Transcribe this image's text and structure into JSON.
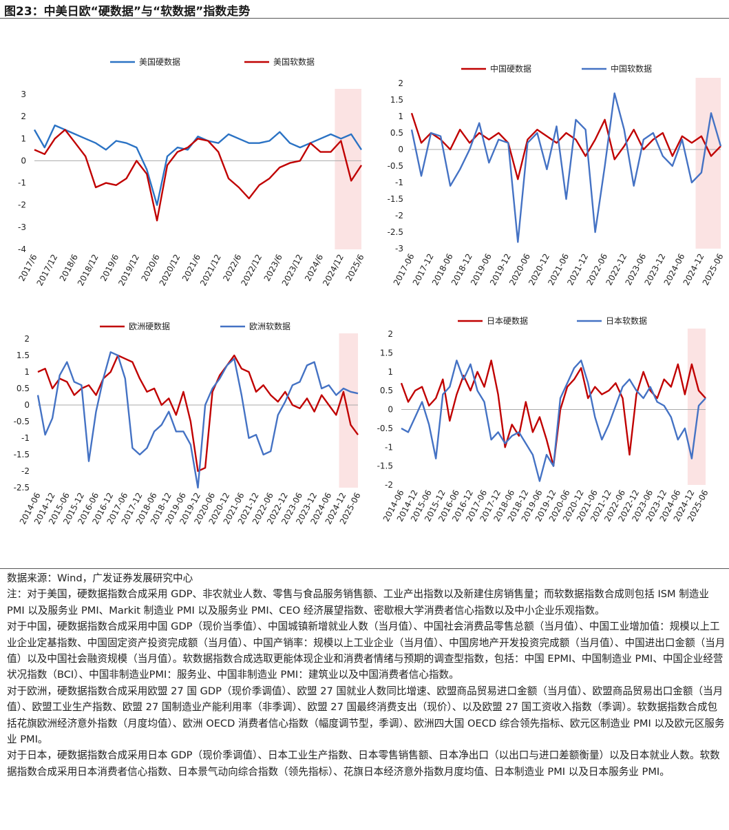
{
  "header": {
    "title": "图23：中美日欧“硬数据”与“软数据”指数走势"
  },
  "chart_data": [
    {
      "type": "line",
      "shade_from": "2024/12",
      "categories": [
        "2017/6",
        null,
        "2017/12",
        null,
        "2018/6",
        null,
        "2018/12",
        null,
        "2019/6",
        null,
        "2019/12",
        null,
        "2020/6",
        null,
        "2020/12",
        null,
        "2021/6",
        null,
        "2021/12",
        null,
        "2022/6",
        null,
        "2022/12",
        null,
        "2023/6",
        null,
        "2023/12",
        null,
        "2024/6",
        null,
        "2024/12",
        null,
        "2025/6"
      ],
      "ylim": [
        -4,
        3
      ],
      "yticks": [
        -4,
        -3,
        -2,
        -1,
        0,
        1,
        2,
        3
      ],
      "series": [
        {
          "name": "美国硬数据",
          "color": "#2a72c4",
          "values": [
            1.4,
            0.6,
            1.6,
            1.4,
            1.2,
            1.0,
            0.8,
            0.5,
            0.9,
            0.8,
            0.6,
            -0.4,
            -2.0,
            0.2,
            0.6,
            0.5,
            1.1,
            0.9,
            0.8,
            1.2,
            1.0,
            0.8,
            0.8,
            0.9,
            1.3,
            0.8,
            0.6,
            0.8,
            1.0,
            1.2,
            1.0,
            1.2,
            0.5
          ]
        },
        {
          "name": "美国软数据",
          "color": "#c00000",
          "values": [
            0.5,
            0.3,
            1.0,
            1.4,
            0.8,
            0.2,
            -1.2,
            -1.0,
            -1.1,
            -0.8,
            0.0,
            -0.6,
            -2.7,
            -0.2,
            0.4,
            0.6,
            1.0,
            0.9,
            0.4,
            -0.8,
            -1.2,
            -1.7,
            -1.1,
            -0.8,
            -0.3,
            -0.1,
            0.0,
            0.8,
            0.4,
            0.4,
            0.9,
            -0.9,
            -0.2
          ]
        }
      ]
    },
    {
      "type": "line",
      "shade_from": "2024-12",
      "categories": [
        "2017-06",
        null,
        "2017-12",
        null,
        "2018-06",
        null,
        "2018-12",
        null,
        "2019-06",
        null,
        "2019-12",
        null,
        "2020-06",
        null,
        "2020-12",
        null,
        "2021-06",
        null,
        "2021-12",
        null,
        "2022-06",
        null,
        "2022-12",
        null,
        "2023-06",
        null,
        "2023-12",
        null,
        "2024-06",
        null,
        "2024-12",
        null,
        "2025-06"
      ],
      "ylim": [
        -3,
        2
      ],
      "yticks": [
        -3,
        -2.5,
        -2,
        -1.5,
        -1,
        -0.5,
        0,
        0.5,
        1,
        1.5,
        2
      ],
      "series": [
        {
          "name": "中国硬数据",
          "color": "#c00000",
          "values": [
            1.1,
            0.2,
            0.5,
            0.3,
            0.0,
            0.6,
            0.2,
            0.5,
            0.3,
            0.5,
            0.2,
            -0.9,
            0.3,
            0.6,
            0.4,
            0.2,
            0.5,
            0.3,
            -0.2,
            0.3,
            0.9,
            -0.3,
            0.1,
            0.6,
            0.0,
            0.3,
            0.5,
            -0.2,
            0.4,
            0.2,
            0.4,
            -0.2,
            0.1
          ]
        },
        {
          "name": "中国软数据",
          "color": "#4472c4",
          "values": [
            0.6,
            -0.8,
            0.5,
            0.4,
            -1.1,
            -0.6,
            0.0,
            0.8,
            -0.4,
            0.3,
            0.2,
            -2.8,
            0.2,
            0.5,
            -0.6,
            0.7,
            -1.5,
            0.9,
            0.6,
            -2.5,
            -0.5,
            1.7,
            0.6,
            -1.1,
            0.3,
            0.5,
            -0.2,
            -0.5,
            0.3,
            -1.0,
            -0.7,
            1.1,
            0.1
          ]
        }
      ]
    },
    {
      "type": "line",
      "shade_from": "2024-12",
      "categories": [
        "2014-06",
        null,
        "2014-12",
        null,
        "2015-06",
        null,
        "2015-12",
        null,
        "2016-06",
        null,
        "2016-12",
        null,
        "2017-06",
        null,
        "2017-12",
        null,
        "2018-06",
        null,
        "2018-12",
        null,
        "2019-06",
        null,
        "2019-12",
        null,
        "2020-06",
        null,
        "2020-12",
        null,
        "2021-06",
        null,
        "2021-12",
        null,
        "2022-06",
        null,
        "2022-12",
        null,
        "2023-06",
        null,
        "2023-12",
        null,
        "2024-06",
        null,
        "2024-12",
        null,
        "2025-06"
      ],
      "ylim": [
        -2.5,
        2
      ],
      "yticks": [
        -2.5,
        -2,
        -1.5,
        -1,
        -0.5,
        0,
        0.5,
        1,
        1.5,
        2
      ],
      "series": [
        {
          "name": "欧洲硬数据",
          "color": "#c00000",
          "values": [
            1.0,
            1.1,
            0.5,
            0.8,
            0.7,
            0.3,
            0.5,
            0.6,
            0.3,
            0.8,
            1.0,
            1.5,
            1.4,
            1.3,
            0.8,
            0.4,
            0.5,
            0.0,
            0.2,
            -0.3,
            0.4,
            -0.5,
            -2.0,
            -1.9,
            0.4,
            0.9,
            1.2,
            1.5,
            1.1,
            1.0,
            0.4,
            0.6,
            0.3,
            0.1,
            0.4,
            0.0,
            -0.1,
            0.2,
            -0.2,
            0.3,
            0.0,
            -0.3,
            0.4,
            -0.6,
            -0.9
          ]
        },
        {
          "name": "欧洲软数据",
          "color": "#4472c4",
          "values": [
            0.3,
            -0.9,
            -0.4,
            0.9,
            1.3,
            0.7,
            0.6,
            -1.7,
            -0.2,
            0.8,
            1.6,
            1.5,
            0.8,
            -1.3,
            -1.5,
            -1.3,
            -0.8,
            -0.6,
            -0.2,
            -0.8,
            -0.8,
            -1.2,
            -2.5,
            0.0,
            0.5,
            0.8,
            1.2,
            1.4,
            0.3,
            -1.0,
            -0.9,
            -1.5,
            -1.4,
            -0.3,
            0.1,
            0.6,
            0.7,
            1.2,
            1.3,
            0.5,
            0.6,
            0.3,
            0.5,
            0.4,
            0.35
          ]
        }
      ]
    },
    {
      "type": "line",
      "shade_from": "2024-12",
      "categories": [
        "2014-06",
        null,
        "2014-12",
        null,
        "2015-06",
        null,
        "2015-12",
        null,
        "2016-06",
        null,
        "2016-12",
        null,
        "2017-06",
        null,
        "2017-12",
        null,
        "2018-06",
        null,
        "2018-12",
        null,
        "2019-06",
        null,
        "2019-12",
        null,
        "2020-06",
        null,
        "2020-12",
        null,
        "2021-06",
        null,
        "2021-12",
        null,
        "2022-06",
        null,
        "2022-12",
        null,
        "2023-06",
        null,
        "2023-12",
        null,
        "2024-06",
        null,
        "2024-12",
        null,
        "2025-06"
      ],
      "ylim": [
        -2,
        2
      ],
      "yticks": [
        -2,
        -1.5,
        -1,
        -0.5,
        0,
        0.5,
        1,
        1.5,
        2
      ],
      "series": [
        {
          "name": "日本硬数据",
          "color": "#c00000",
          "values": [
            0.7,
            0.2,
            0.5,
            0.6,
            0.1,
            0.3,
            0.8,
            -0.3,
            0.4,
            0.9,
            0.5,
            1.0,
            0.6,
            1.3,
            0.4,
            -1.0,
            -0.4,
            -0.7,
            0.2,
            -0.6,
            -0.2,
            -0.8,
            -1.5,
            0.0,
            0.6,
            0.8,
            1.1,
            0.3,
            0.6,
            0.4,
            0.5,
            0.7,
            0.3,
            -1.2,
            0.4,
            1.0,
            0.5,
            0.3,
            0.8,
            0.6,
            1.2,
            0.4,
            1.2,
            0.5,
            0.3
          ]
        },
        {
          "name": "日本软数据",
          "color": "#4472c4",
          "values": [
            -0.5,
            -0.6,
            -0.2,
            0.2,
            -0.4,
            -1.3,
            0.4,
            0.6,
            1.3,
            0.8,
            1.2,
            0.5,
            0.2,
            -0.8,
            -0.6,
            -0.9,
            -0.7,
            -0.6,
            -0.9,
            -1.2,
            -1.9,
            -1.2,
            -1.5,
            0.3,
            0.7,
            1.1,
            1.3,
            0.7,
            -0.2,
            -0.8,
            -0.4,
            0.1,
            0.6,
            0.8,
            0.5,
            0.3,
            0.6,
            0.2,
            0.1,
            -0.2,
            -0.8,
            -0.5,
            -1.3,
            0.1,
            0.3
          ]
        }
      ]
    }
  ],
  "notes": {
    "source": "数据来源：Wind，广发证券发展研究中心",
    "paragraphs": [
      "注：对于美国，硬数据指数合成采用 GDP、非农就业人数、零售与食品服务销售额、工业产出指数以及新建住房销售量；而软数据指数合成则包括 ISM 制造业 PMI 以及服务业 PMI、Markit 制造业 PMI 以及服务业 PMI、CEO 经济展望指数、密歇根大学消费者信心指数以及中小企业乐观指数。",
      "对于中国，硬数据指数合成采用中国 GDP（现价当季值）、中国城镇新增就业人数（当月值）、中国社会消费品零售总额（当月值）、中国工业增加值：规模以上工业企业定基指数、中国固定资产投资完成额（当月值）、中国产销率：规模以上工业企业（当月值）、中国房地产开发投资完成额（当月值）、中国进出口金额（当月值）以及中国社会融资规模（当月值）。软数据指数合成选取更能体现企业和消费者情绪与预期的调查型指数，包括：中国 EPMI、中国制造业 PMI、中国企业经营状况指数（BCI）、中国非制造业PMI：服务业、中国非制造业 PMI：建筑业以及中国消费者信心指数。",
      "对于欧洲，硬数据指数合成采用欧盟 27 国 GDP（现价季调值）、欧盟 27 国就业人数同比增速、欧盟商品贸易进口金额（当月值）、欧盟商品贸易出口金额（当月值）、欧盟工业生产指数、欧盟 27 国制造业产能利用率（非季调）、欧盟 27 国最终消费支出（现价）、以及欧盟 27 国工资收入指数（季调）。软数据指数合成包括花旗欧洲经济意外指数（月度均值）、欧洲 OECD 消费者信心指数（幅度调节型，季调）、欧洲四大国 OECD 综合领先指标、欧元区制造业 PMI 以及欧元区服务业 PMI。",
      "对于日本，硬数据指数合成采用日本 GDP（现价季调值）、日本工业生产指数、日本零售销售额、日本净出口（以出口与进口差额衡量）以及日本就业人数。软数据指数合成采用日本消费者信心指数、日本景气动向综合指数（领先指标）、花旗日本经济意外指数月度均值、日本制造业 PMI 以及日本服务业 PMI。"
    ]
  }
}
